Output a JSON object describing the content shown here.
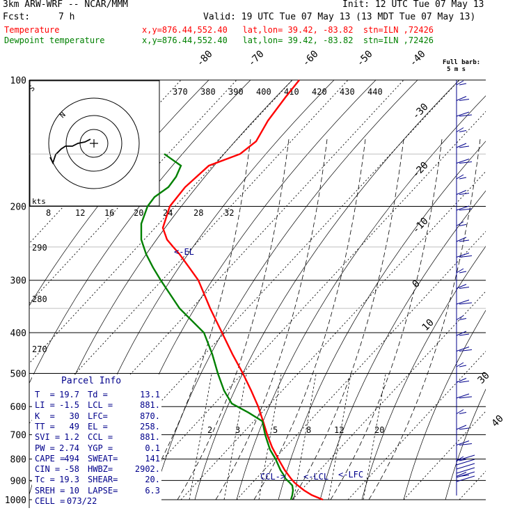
{
  "header": {
    "model": "3km ARW-WRF -- NCAR/MMM",
    "init": "Init: 12 UTC Tue 07 May 13",
    "fcst_label": "Fcst:",
    "fcst_value": "7 h",
    "valid": "Valid: 19 UTC Tue 07 May 13 (13 MDT Tue 07 May 13)",
    "temp_line": {
      "label": "Temperature",
      "info": "x,y=876.44,552.40   lat,lon= 39.42, -83.82  stn=ILN ,72426"
    },
    "dew_line": {
      "label": "Dewpoint temperature",
      "info": "x,y=876.44,552.40   lat,lon= 39.42, -83.82  stn=ILN ,72426"
    }
  },
  "colors": {
    "temperature": "#ff0000",
    "dewpoint": "#008000",
    "text": "#000000",
    "panel_text": "#00008b",
    "barb": "#00008b"
  },
  "full_barb_label": [
    "Full barb:",
    "5 m s"
  ],
  "hodograph": {
    "speed_unit": "kts",
    "ring_labels": [
      "N",
      "S"
    ]
  },
  "parcel": {
    "title": "Parcel Info",
    "rows": [
      [
        "T  =",
        "19.7",
        "Td =",
        "13.1"
      ],
      [
        "LI =",
        "-1.5",
        "LCL =",
        "881."
      ],
      [
        "K  =",
        "30",
        "LFC=",
        "870."
      ],
      [
        "TT =",
        "49",
        "EL =",
        "258."
      ],
      [
        "SVI =",
        "1.2",
        "CCL =",
        "881."
      ],
      [
        "PW =",
        "2.74",
        "YGP =",
        "0.1"
      ],
      [
        "CAPE =",
        "494",
        "SWEAT=",
        "141"
      ],
      [
        "CIN =",
        "-58",
        "HWBZ=",
        "2902."
      ],
      [
        "Tc =",
        "19.3",
        "SHEAR=",
        "20."
      ],
      [
        "SREH =",
        "10",
        "LAPSE=",
        "6.3"
      ],
      [
        "CELL =",
        "073/22",
        "",
        ""
      ]
    ]
  },
  "annotations": {
    "el": "<-EL",
    "ccl": "CCL->",
    "lcl": "<-LCL",
    "lfc": "<-LFC"
  },
  "chart_data": {
    "type": "line",
    "pressure_levels": [
      100,
      200,
      300,
      400,
      500,
      600,
      700,
      800,
      900,
      1000
    ],
    "isotherm_labels": [
      -80,
      -70,
      -60,
      -50,
      -40,
      -30,
      -20,
      -10,
      0,
      10,
      30,
      40
    ],
    "theta_labels": [
      370,
      380,
      390,
      400,
      410,
      420,
      430,
      440
    ],
    "lower_theta_labels": [
      290,
      280,
      270
    ],
    "hodo_speed_labels": [
      8,
      12,
      16,
      20,
      24,
      28,
      32
    ],
    "mixing_ratio_labels": [
      2,
      3,
      5,
      8,
      12,
      20
    ],
    "series": [
      {
        "name": "Temperature",
        "pressure": [
          1000,
          975,
          950,
          925,
          910,
          890,
          850,
          800,
          750,
          700,
          650,
          600,
          550,
          500,
          450,
          400,
          350,
          300,
          280,
          260,
          250,
          240,
          225,
          200,
          180,
          160,
          150,
          140,
          125,
          110,
          100
        ],
        "px": [
          464,
          448,
          437,
          428,
          423,
          418,
          409,
          400,
          391,
          384,
          378,
          371,
          361,
          349,
          334,
          319,
          302,
          285,
          272,
          258,
          249,
          240,
          234,
          244,
          266,
          300,
          345,
          368,
          385,
          410,
          430
        ]
      },
      {
        "name": "Dewpoint temperature",
        "pressure": [
          1000,
          975,
          950,
          925,
          910,
          890,
          880,
          850,
          800,
          760,
          700,
          650,
          620,
          590,
          550,
          500,
          450,
          400,
          350,
          300,
          280,
          260,
          240,
          220,
          200,
          190,
          180,
          170,
          160,
          150
        ],
        "px": [
          418,
          420,
          421,
          420,
          416,
          410,
          409,
          403,
          396,
          388,
          381,
          377,
          357,
          333,
          322,
          313,
          305,
          293,
          258,
          231,
          220,
          210,
          203,
          203,
          212,
          222,
          242,
          253,
          260,
          236
        ]
      }
    ]
  }
}
